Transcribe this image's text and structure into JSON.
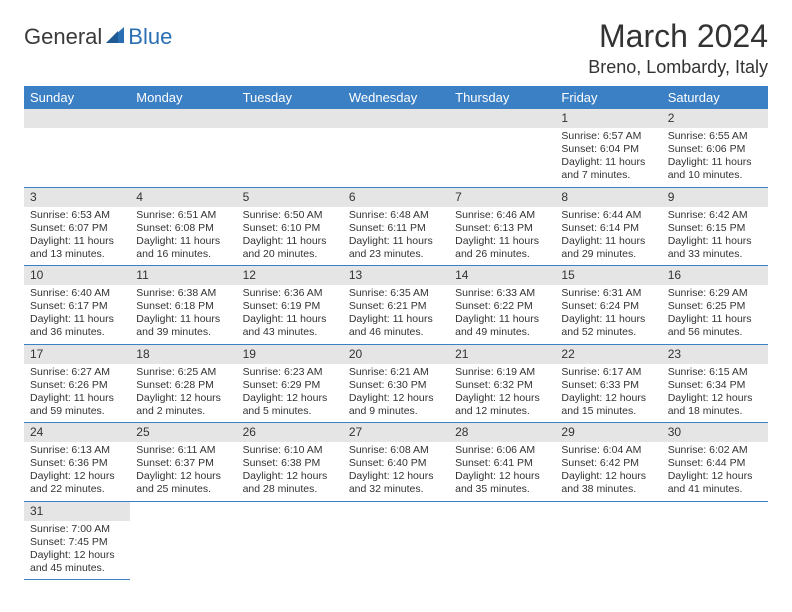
{
  "logo": {
    "text1": "General",
    "text2": "Blue"
  },
  "title": "March 2024",
  "location": "Breno, Lombardy, Italy",
  "colors": {
    "header_bg": "#3b7fc4",
    "header_text": "#ffffff",
    "daynum_bg": "#e5e5e5",
    "border": "#3b7fc4",
    "text": "#333333",
    "logo_blue": "#2a6fb3",
    "logo_gray": "#3a3a3a"
  },
  "weekdays": [
    "Sunday",
    "Monday",
    "Tuesday",
    "Wednesday",
    "Thursday",
    "Friday",
    "Saturday"
  ],
  "weeks": [
    [
      null,
      null,
      null,
      null,
      null,
      {
        "n": "1",
        "sr": "Sunrise: 6:57 AM",
        "ss": "Sunset: 6:04 PM",
        "dl": "Daylight: 11 hours and 7 minutes."
      },
      {
        "n": "2",
        "sr": "Sunrise: 6:55 AM",
        "ss": "Sunset: 6:06 PM",
        "dl": "Daylight: 11 hours and 10 minutes."
      }
    ],
    [
      {
        "n": "3",
        "sr": "Sunrise: 6:53 AM",
        "ss": "Sunset: 6:07 PM",
        "dl": "Daylight: 11 hours and 13 minutes."
      },
      {
        "n": "4",
        "sr": "Sunrise: 6:51 AM",
        "ss": "Sunset: 6:08 PM",
        "dl": "Daylight: 11 hours and 16 minutes."
      },
      {
        "n": "5",
        "sr": "Sunrise: 6:50 AM",
        "ss": "Sunset: 6:10 PM",
        "dl": "Daylight: 11 hours and 20 minutes."
      },
      {
        "n": "6",
        "sr": "Sunrise: 6:48 AM",
        "ss": "Sunset: 6:11 PM",
        "dl": "Daylight: 11 hours and 23 minutes."
      },
      {
        "n": "7",
        "sr": "Sunrise: 6:46 AM",
        "ss": "Sunset: 6:13 PM",
        "dl": "Daylight: 11 hours and 26 minutes."
      },
      {
        "n": "8",
        "sr": "Sunrise: 6:44 AM",
        "ss": "Sunset: 6:14 PM",
        "dl": "Daylight: 11 hours and 29 minutes."
      },
      {
        "n": "9",
        "sr": "Sunrise: 6:42 AM",
        "ss": "Sunset: 6:15 PM",
        "dl": "Daylight: 11 hours and 33 minutes."
      }
    ],
    [
      {
        "n": "10",
        "sr": "Sunrise: 6:40 AM",
        "ss": "Sunset: 6:17 PM",
        "dl": "Daylight: 11 hours and 36 minutes."
      },
      {
        "n": "11",
        "sr": "Sunrise: 6:38 AM",
        "ss": "Sunset: 6:18 PM",
        "dl": "Daylight: 11 hours and 39 minutes."
      },
      {
        "n": "12",
        "sr": "Sunrise: 6:36 AM",
        "ss": "Sunset: 6:19 PM",
        "dl": "Daylight: 11 hours and 43 minutes."
      },
      {
        "n": "13",
        "sr": "Sunrise: 6:35 AM",
        "ss": "Sunset: 6:21 PM",
        "dl": "Daylight: 11 hours and 46 minutes."
      },
      {
        "n": "14",
        "sr": "Sunrise: 6:33 AM",
        "ss": "Sunset: 6:22 PM",
        "dl": "Daylight: 11 hours and 49 minutes."
      },
      {
        "n": "15",
        "sr": "Sunrise: 6:31 AM",
        "ss": "Sunset: 6:24 PM",
        "dl": "Daylight: 11 hours and 52 minutes."
      },
      {
        "n": "16",
        "sr": "Sunrise: 6:29 AM",
        "ss": "Sunset: 6:25 PM",
        "dl": "Daylight: 11 hours and 56 minutes."
      }
    ],
    [
      {
        "n": "17",
        "sr": "Sunrise: 6:27 AM",
        "ss": "Sunset: 6:26 PM",
        "dl": "Daylight: 11 hours and 59 minutes."
      },
      {
        "n": "18",
        "sr": "Sunrise: 6:25 AM",
        "ss": "Sunset: 6:28 PM",
        "dl": "Daylight: 12 hours and 2 minutes."
      },
      {
        "n": "19",
        "sr": "Sunrise: 6:23 AM",
        "ss": "Sunset: 6:29 PM",
        "dl": "Daylight: 12 hours and 5 minutes."
      },
      {
        "n": "20",
        "sr": "Sunrise: 6:21 AM",
        "ss": "Sunset: 6:30 PM",
        "dl": "Daylight: 12 hours and 9 minutes."
      },
      {
        "n": "21",
        "sr": "Sunrise: 6:19 AM",
        "ss": "Sunset: 6:32 PM",
        "dl": "Daylight: 12 hours and 12 minutes."
      },
      {
        "n": "22",
        "sr": "Sunrise: 6:17 AM",
        "ss": "Sunset: 6:33 PM",
        "dl": "Daylight: 12 hours and 15 minutes."
      },
      {
        "n": "23",
        "sr": "Sunrise: 6:15 AM",
        "ss": "Sunset: 6:34 PM",
        "dl": "Daylight: 12 hours and 18 minutes."
      }
    ],
    [
      {
        "n": "24",
        "sr": "Sunrise: 6:13 AM",
        "ss": "Sunset: 6:36 PM",
        "dl": "Daylight: 12 hours and 22 minutes."
      },
      {
        "n": "25",
        "sr": "Sunrise: 6:11 AM",
        "ss": "Sunset: 6:37 PM",
        "dl": "Daylight: 12 hours and 25 minutes."
      },
      {
        "n": "26",
        "sr": "Sunrise: 6:10 AM",
        "ss": "Sunset: 6:38 PM",
        "dl": "Daylight: 12 hours and 28 minutes."
      },
      {
        "n": "27",
        "sr": "Sunrise: 6:08 AM",
        "ss": "Sunset: 6:40 PM",
        "dl": "Daylight: 12 hours and 32 minutes."
      },
      {
        "n": "28",
        "sr": "Sunrise: 6:06 AM",
        "ss": "Sunset: 6:41 PM",
        "dl": "Daylight: 12 hours and 35 minutes."
      },
      {
        "n": "29",
        "sr": "Sunrise: 6:04 AM",
        "ss": "Sunset: 6:42 PM",
        "dl": "Daylight: 12 hours and 38 minutes."
      },
      {
        "n": "30",
        "sr": "Sunrise: 6:02 AM",
        "ss": "Sunset: 6:44 PM",
        "dl": "Daylight: 12 hours and 41 minutes."
      }
    ],
    [
      {
        "n": "31",
        "sr": "Sunrise: 7:00 AM",
        "ss": "Sunset: 7:45 PM",
        "dl": "Daylight: 12 hours and 45 minutes."
      },
      null,
      null,
      null,
      null,
      null,
      null
    ]
  ]
}
